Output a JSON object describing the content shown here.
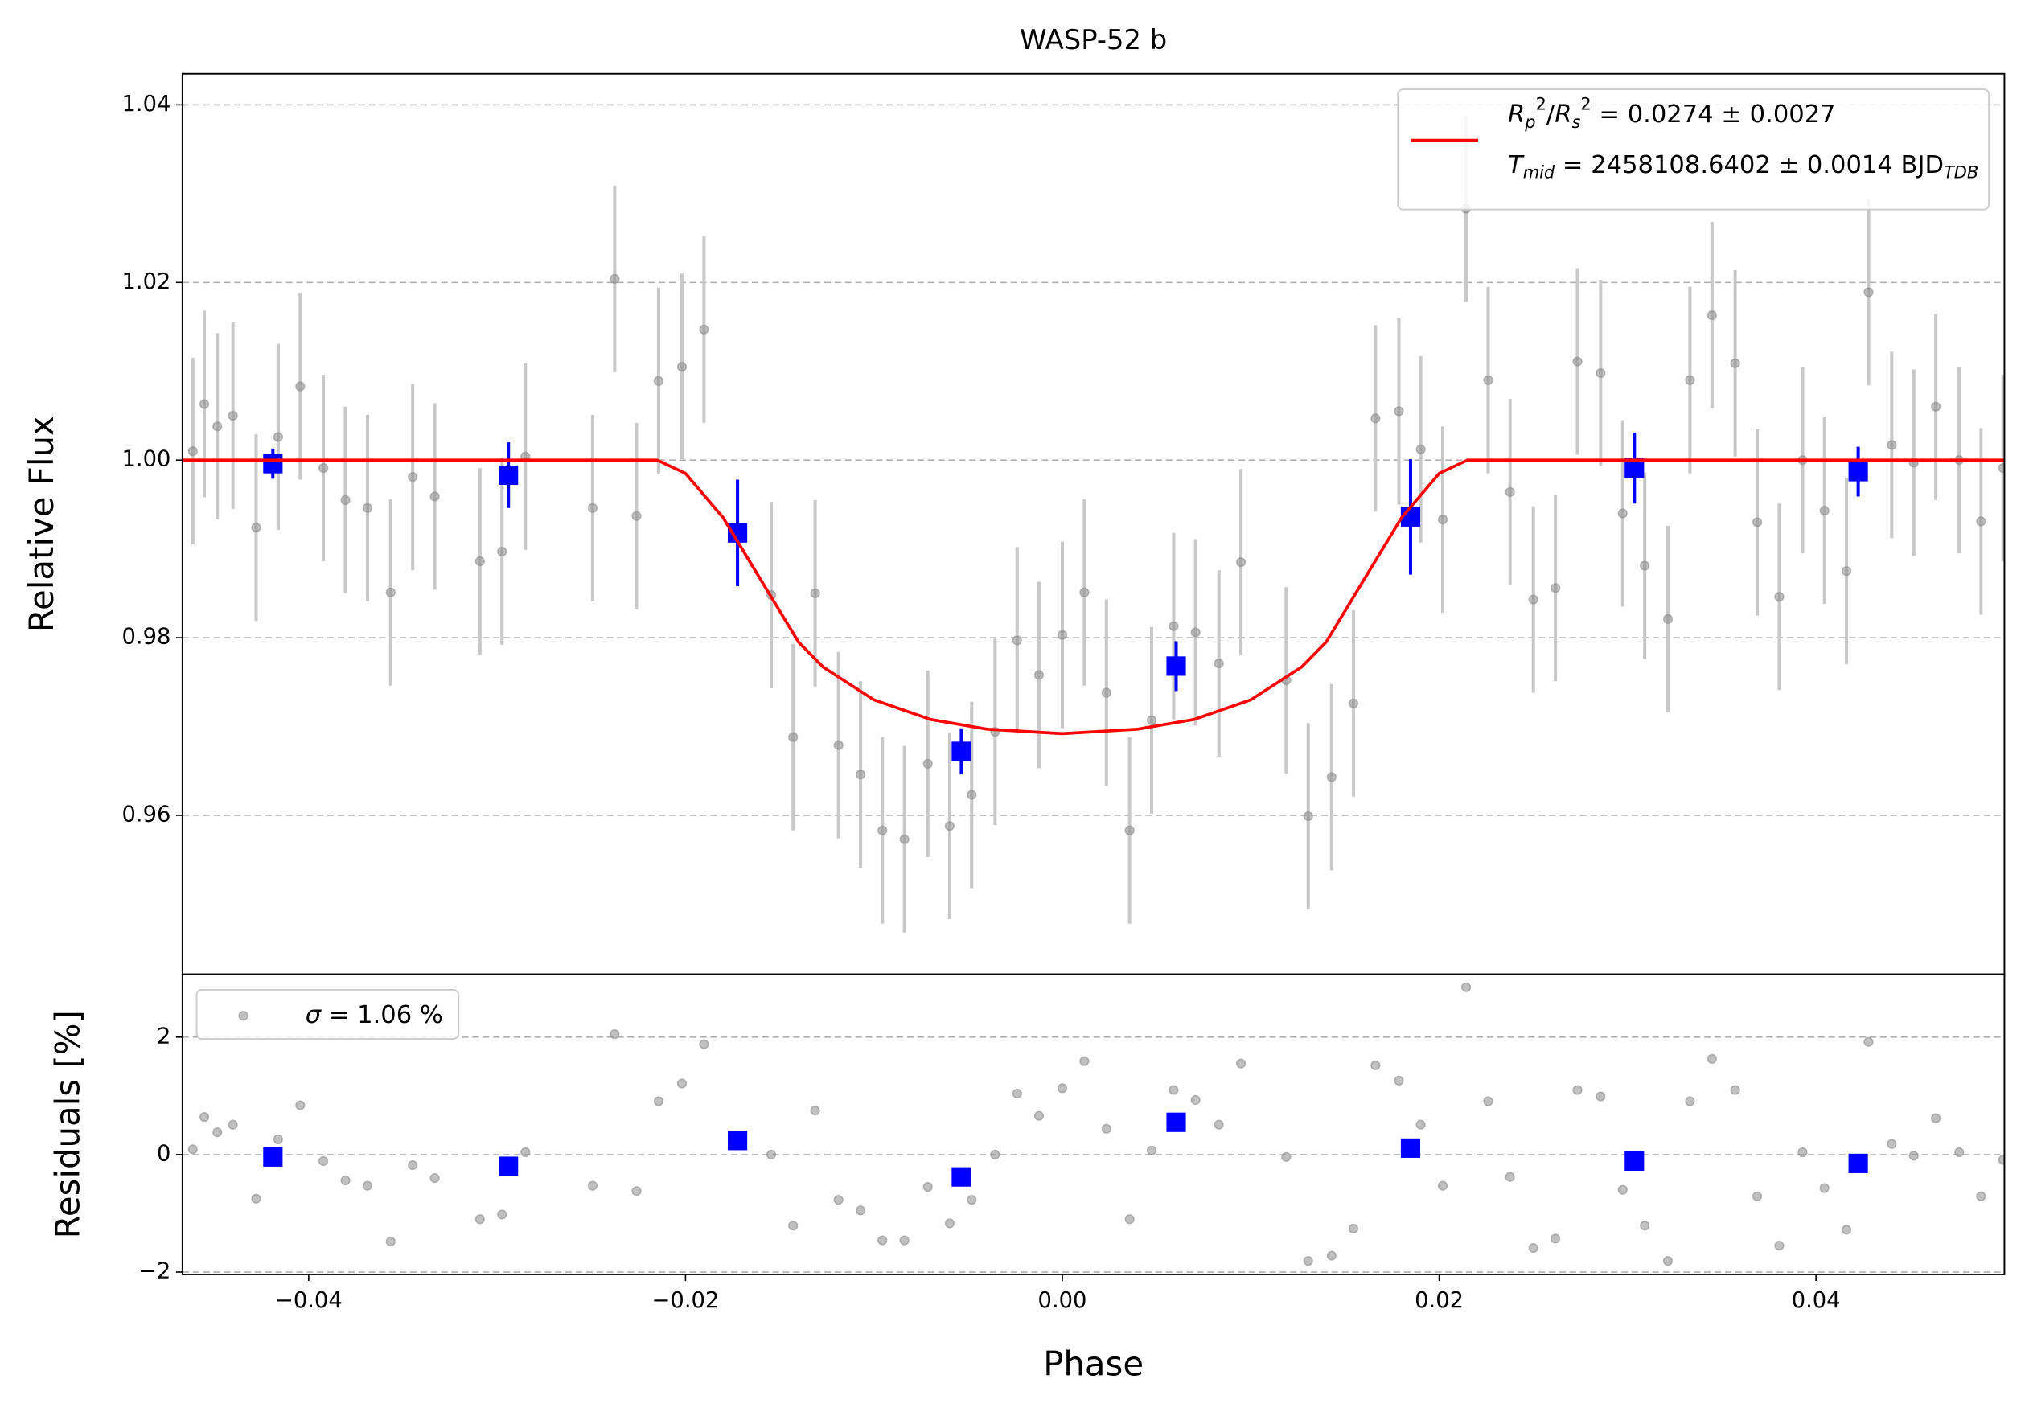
{
  "chart_data": [
    {
      "type": "errorbar",
      "title": "WASP-52 b",
      "ylabel": "Relative Flux",
      "xlim": [
        -0.0467,
        0.05
      ],
      "ylim": [
        0.9421,
        1.0435
      ],
      "yticks": [
        0.96,
        0.98,
        {
          "value": 1.0,
          "label": "1.00"
        },
        1.02,
        1.04
      ],
      "grid": true,
      "legend": "upper right",
      "series": [
        {
          "type": "errorbar",
          "marker": "o",
          "color": "#8c8c8c",
          "ecolor": "#c8c8c8",
          "yerr": 0.0105,
          "x": [
            -0.04615,
            -0.04554,
            -0.04485,
            -0.04402,
            -0.04279,
            -0.04162,
            -0.04045,
            -0.03922,
            -0.03805,
            -0.03688,
            -0.03565,
            -0.03448,
            -0.03331,
            -0.03091,
            -0.02974,
            -0.0285,
            -0.02493,
            -0.02376,
            -0.0226,
            -0.02143,
            -0.02019,
            -0.01902,
            -0.01545,
            -0.01429,
            -0.01312,
            -0.01188,
            -0.01071,
            -0.00955,
            -0.00838,
            -0.00714,
            -0.00598,
            -0.00481,
            -0.00357,
            -0.0024,
            -0.00124,
            0.0,
            0.00117,
            0.00234,
            0.00357,
            0.00474,
            0.00591,
            0.00707,
            0.00831,
            0.00948,
            0.01188,
            0.01305,
            0.01429,
            0.01545,
            0.01662,
            0.01786,
            0.01902,
            0.02019,
            0.02143,
            0.0226,
            0.02376,
            0.025,
            0.02617,
            0.02734,
            0.02857,
            0.02974,
            0.03091,
            0.03214,
            0.03331,
            0.03448,
            0.03571,
            0.03688,
            0.03805,
            0.03929,
            0.04045,
            0.04162,
            0.04279,
            0.04402,
            0.04519,
            0.04636,
            0.0476,
            0.04876,
            0.04993
          ],
          "values": [
            1.001,
            1.0063,
            1.0038,
            1.005,
            0.9924,
            1.0026,
            1.0083,
            0.9991,
            0.9955,
            0.9946,
            0.9851,
            0.9981,
            0.9959,
            0.9886,
            0.9897,
            1.0004,
            0.9946,
            1.0204,
            0.9937,
            1.0089,
            1.0105,
            1.0147,
            0.9848,
            0.9688,
            0.985,
            0.9679,
            0.9646,
            0.9583,
            0.9573,
            0.9658,
            0.9588,
            0.9623,
            0.9694,
            0.9797,
            0.9758,
            0.9803,
            0.9851,
            0.9738,
            0.9583,
            0.9707,
            0.9813,
            0.9806,
            0.9771,
            0.9885,
            0.9752,
            0.9599,
            0.9643,
            0.9726,
            1.0047,
            1.0055,
            1.0012,
            0.9933,
            1.0283,
            1.009,
            0.9964,
            0.9843,
            0.9856,
            1.0111,
            1.0098,
            0.994,
            0.9881,
            0.9821,
            1.009,
            1.0163,
            1.0109,
            0.993,
            0.9846,
            1.0,
            0.9943,
            0.9875,
            1.0189,
            1.0017,
            0.9997,
            1.006,
            1.0,
            0.9931,
            0.9991
          ]
        },
        {
          "type": "errorbar",
          "marker": "s",
          "color": "#0000ff",
          "ecolor": "#0000ff",
          "x": [
            -0.0419,
            -0.0294,
            -0.01724,
            -0.00536,
            0.00604,
            0.01848,
            0.03036,
            0.04224
          ],
          "values": [
            0.9996,
            0.9983,
            0.9918,
            0.9672,
            0.9768,
            0.9936,
            0.9991,
            0.9987
          ],
          "yerr": [
            0.0017,
            0.0037,
            0.006,
            0.0026,
            0.0028,
            0.0065,
            0.004,
            0.0028
          ]
        },
        {
          "type": "line",
          "color": "#ff0000",
          "x": [
            -0.0467,
            -0.0215,
            -0.02,
            -0.018,
            -0.016,
            -0.014,
            -0.0127,
            -0.01,
            -0.007,
            -0.004,
            0.0,
            0.004,
            0.007,
            0.01,
            0.0127,
            0.014,
            0.016,
            0.018,
            0.02,
            0.0215,
            0.05
          ],
          "values": [
            1.0,
            1.0,
            0.9985,
            0.9935,
            0.9865,
            0.9795,
            0.9767,
            0.973,
            0.9708,
            0.9697,
            0.9692,
            0.9697,
            0.9708,
            0.973,
            0.9767,
            0.9795,
            0.9865,
            0.9935,
            0.9985,
            1.0,
            1.0
          ],
          "label_lines": [
            [
              {
                "text": "R",
                "italic": true
              },
              {
                "text": "p",
                "italic": true,
                "shift": "sub"
              },
              {
                "text": "2",
                "shift": "sup"
              },
              {
                "text": "/"
              },
              {
                "text": "R",
                "italic": true
              },
              {
                "text": "s",
                "italic": true,
                "shift": "sub"
              },
              {
                "text": "2",
                "shift": "sup"
              },
              {
                "text": " = 0.0274 ± 0.0027"
              }
            ],
            [
              {
                "text": "T",
                "italic": true
              },
              {
                "text": "mid",
                "italic": true,
                "shift": "sub"
              },
              {
                "text": " = 2458108.6402 ± 0.0014 BJD"
              },
              {
                "text": "TDB",
                "italic": true,
                "shift": "sub"
              }
            ]
          ]
        }
      ]
    },
    {
      "type": "scatter",
      "ylabel": "Residuals [%]",
      "xlabel": "Phase",
      "xlim": [
        -0.0467,
        0.05
      ],
      "ylim": [
        -2.04,
        3.07
      ],
      "xticks": [
        {
          "value": -0.04,
          "label": "−0.04"
        },
        {
          "value": -0.02,
          "label": "−0.02"
        },
        {
          "value": 0.0,
          "label": "0.00"
        },
        {
          "value": 0.02,
          "label": "0.02"
        },
        {
          "value": 0.04,
          "label": "0.04"
        }
      ],
      "yticks": [
        {
          "value": -2,
          "label": "−2"
        },
        0,
        2
      ],
      "grid": true,
      "legend": "upper left",
      "series": [
        {
          "type": "scatter",
          "marker": "o",
          "color": "#8c8c8c",
          "x": [
            -0.04615,
            -0.04554,
            -0.04485,
            -0.04402,
            -0.04279,
            -0.04162,
            -0.04045,
            -0.03922,
            -0.03805,
            -0.03688,
            -0.03565,
            -0.03448,
            -0.03331,
            -0.03091,
            -0.02974,
            -0.0285,
            -0.02493,
            -0.02376,
            -0.0226,
            -0.02143,
            -0.02019,
            -0.01902,
            -0.01545,
            -0.01429,
            -0.01312,
            -0.01188,
            -0.01071,
            -0.00955,
            -0.00838,
            -0.00714,
            -0.00598,
            -0.00481,
            -0.00357,
            -0.0024,
            -0.00124,
            0.0,
            0.00117,
            0.00234,
            0.00357,
            0.00474,
            0.00591,
            0.00707,
            0.00831,
            0.00948,
            0.01188,
            0.01305,
            0.01429,
            0.01545,
            0.01662,
            0.01786,
            0.01902,
            0.02019,
            0.02143,
            0.0226,
            0.02376,
            0.025,
            0.02617,
            0.02734,
            0.02857,
            0.02974,
            0.03091,
            0.03214,
            0.03331,
            0.03448,
            0.03571,
            0.03688,
            0.03805,
            0.03929,
            0.04045,
            0.04162,
            0.04279,
            0.04402,
            0.04519,
            0.04636,
            0.0476,
            0.04876,
            0.04993
          ],
          "values": [
            0.09,
            0.64,
            0.38,
            0.51,
            -0.75,
            0.26,
            0.84,
            -0.11,
            -0.44,
            -0.53,
            -1.48,
            -0.18,
            -0.4,
            -1.1,
            -1.02,
            0.04,
            -0.53,
            2.05,
            -0.62,
            0.91,
            1.21,
            1.88,
            0.0,
            -1.21,
            0.75,
            -0.77,
            -0.95,
            -1.46,
            -1.46,
            -0.55,
            -1.17,
            -0.77,
            0.0,
            1.04,
            0.66,
            1.13,
            1.59,
            0.44,
            -1.1,
            0.07,
            1.1,
            0.93,
            0.51,
            1.55,
            -0.04,
            -1.81,
            -1.72,
            -1.26,
            1.52,
            1.26,
            0.51,
            -0.53,
            2.85,
            0.91,
            -0.38,
            -1.59,
            -1.43,
            1.1,
            0.99,
            -0.6,
            -1.21,
            -1.81,
            0.91,
            1.63,
            1.1,
            -0.71,
            -1.55,
            0.04,
            -0.57,
            -1.28,
            1.92,
            0.18,
            -0.02,
            0.62,
            0.04,
            -0.71,
            -0.09
          ],
          "label_lines": [
            [
              {
                "text": "σ",
                "italic": true
              },
              {
                "text": " = 1.06 %"
              }
            ]
          ]
        },
        {
          "type": "scatter",
          "marker": "s",
          "color": "#0000ff",
          "x": [
            -0.0419,
            -0.0294,
            -0.01724,
            -0.00536,
            0.00604,
            0.01848,
            0.03036,
            0.04224
          ],
          "values": [
            -0.04,
            -0.2,
            0.24,
            -0.38,
            0.55,
            0.11,
            -0.11,
            -0.15
          ]
        }
      ]
    }
  ]
}
